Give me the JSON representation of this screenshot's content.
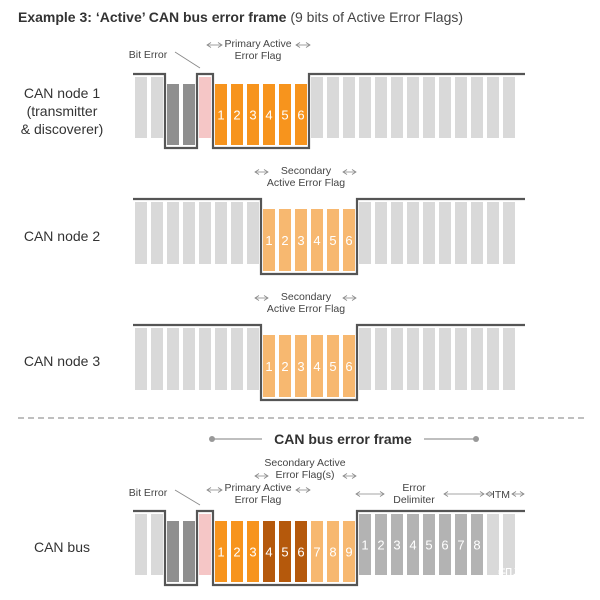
{
  "title": {
    "bold": "Example 3: ‘Active’ CAN bus error frame",
    "rest": " (9 bits of Active Error Flags)"
  },
  "nodes": [
    {
      "label_lines": [
        "CAN node 1",
        "(transmitter",
        "& discoverer)"
      ]
    },
    {
      "label_lines": [
        "CAN node 2"
      ]
    },
    {
      "label_lines": [
        "CAN node 3"
      ]
    }
  ],
  "labels": {
    "bit_error": "Bit Error",
    "primary_flag": [
      "Primary Active",
      "Error Flag"
    ],
    "secondary_flag": [
      "Secondary",
      "Active Error Flag"
    ],
    "bus_header": "CAN bus error frame",
    "bus_label": "CAN bus",
    "secondary_flags": [
      "Secondary Active",
      "Error Flag(s)"
    ],
    "error_delimiter": [
      "Error",
      "Delimiter"
    ],
    "itm": "ITM"
  },
  "digits_6": [
    "1",
    "2",
    "3",
    "4",
    "5",
    "6"
  ],
  "digits_9": [
    "1",
    "2",
    "3",
    "4",
    "5",
    "6",
    "7",
    "8",
    "9"
  ],
  "digits_8": [
    "1",
    "2",
    "3",
    "4",
    "5",
    "6",
    "7",
    "8"
  ],
  "watermark": "知乎 @王晓东",
  "colors": {
    "bit_gray": "#d9d9d9",
    "bit_dark": "#8f8f8f",
    "bit_pink": "#f5c6c6",
    "orange_primary": "#f7941d",
    "orange_light": "#f7b870",
    "orange_dark": "#b5590c",
    "delimiter_gray": "#b3b3b3",
    "line": "#555555"
  }
}
